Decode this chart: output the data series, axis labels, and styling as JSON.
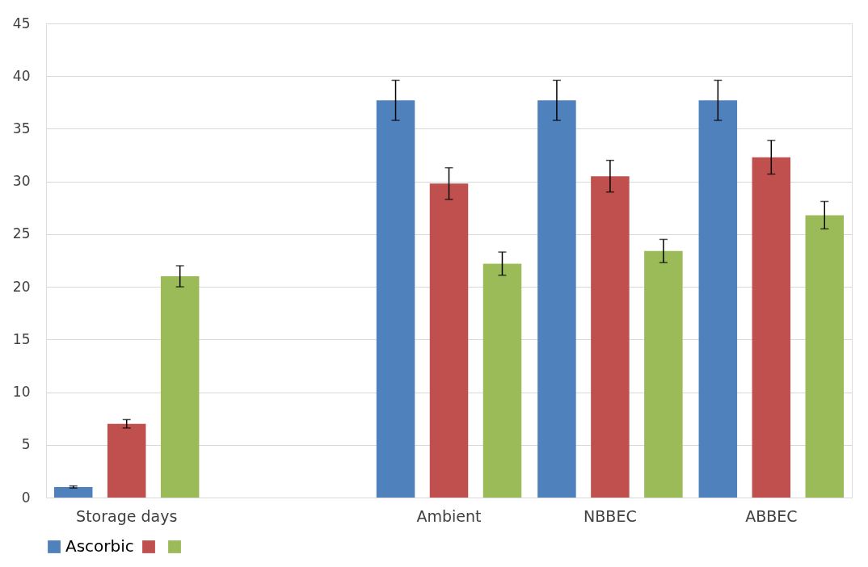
{
  "chart_data": {
    "type": "bar",
    "categories": [
      "Storage days",
      null,
      "Ambient",
      "NBBEC",
      "ABBEC"
    ],
    "series": [
      {
        "name": "Ascorbic",
        "color": "#4f81bd",
        "values": [
          1.0,
          null,
          37.7,
          37.7,
          37.7
        ],
        "errors": [
          0.1,
          null,
          1.9,
          1.9,
          1.9
        ]
      },
      {
        "color": "#c0504d",
        "values": [
          7.0,
          null,
          29.8,
          30.5,
          32.3
        ],
        "errors": [
          0.4,
          null,
          1.5,
          1.5,
          1.6
        ]
      },
      {
        "color": "#9bbb59",
        "values": [
          21.0,
          null,
          22.2,
          23.4,
          26.8
        ],
        "errors": [
          1.0,
          null,
          1.1,
          1.1,
          1.3
        ]
      }
    ],
    "ylim": [
      0,
      45
    ],
    "yticks": [
      0,
      5,
      10,
      15,
      20,
      25,
      30,
      35,
      40,
      45
    ],
    "grid": "y",
    "legend": "bottom"
  }
}
